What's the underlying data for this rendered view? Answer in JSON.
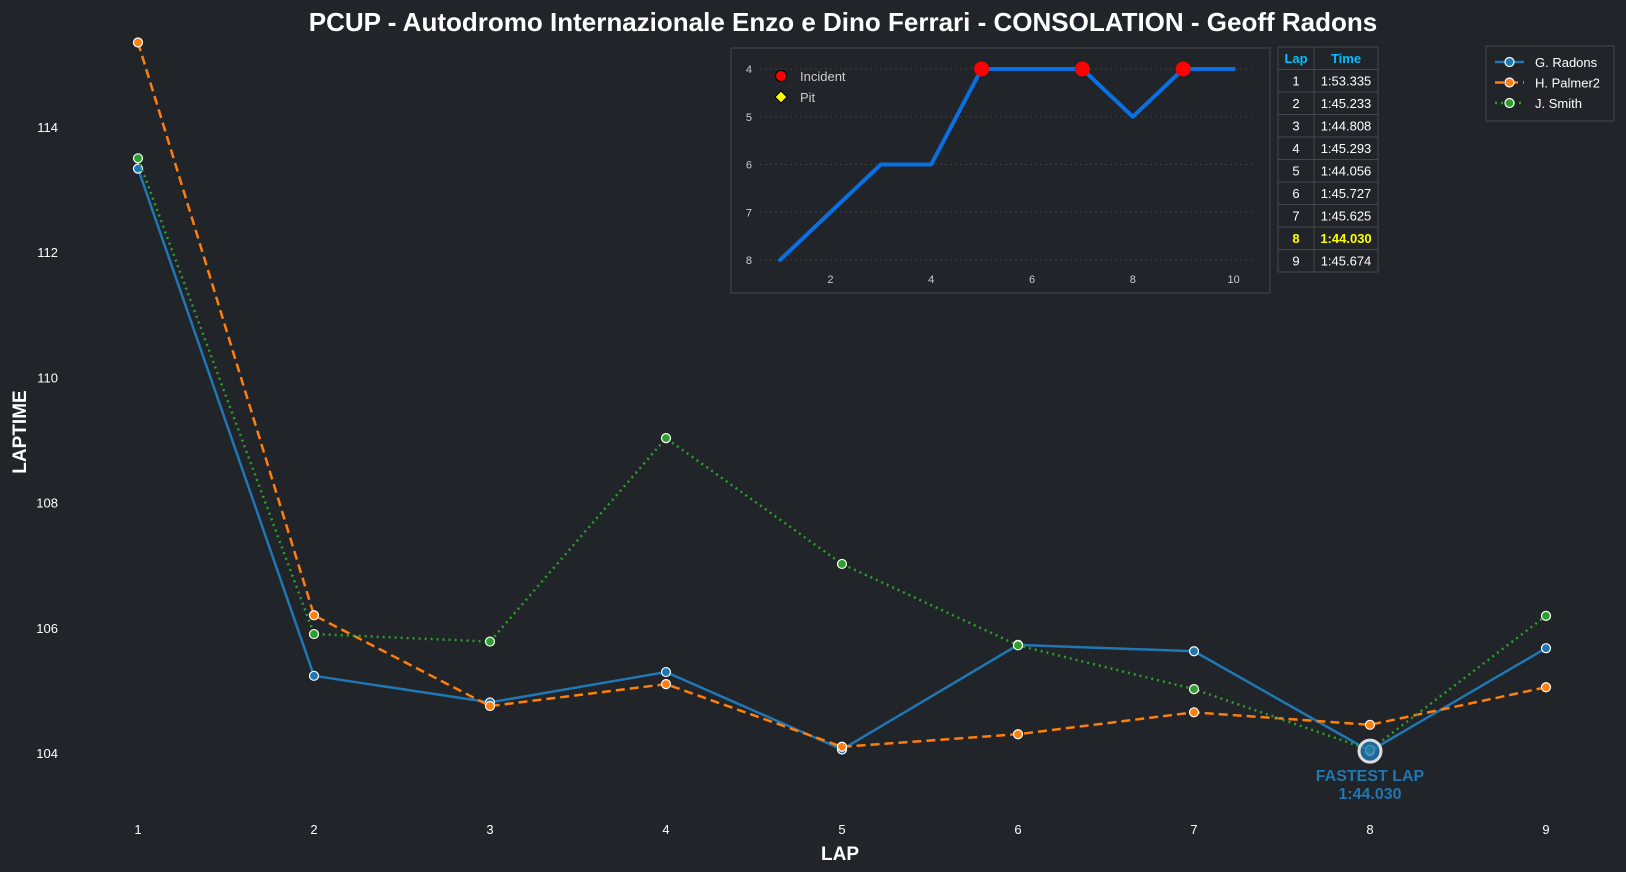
{
  "chart_data": {
    "type": "line",
    "title": "PCUP - Autodromo Internazionale Enzo e Dino Ferrari - CONSOLATION - Geoff Radons",
    "xlabel": "LAP",
    "ylabel": "LAPTIME",
    "x": [
      1,
      2,
      3,
      4,
      5,
      6,
      7,
      8,
      9
    ],
    "xticks": [
      "1",
      "2",
      "3",
      "4",
      "5",
      "6",
      "7",
      "8",
      "9"
    ],
    "yticks": [
      104,
      106,
      108,
      110,
      112,
      114
    ],
    "ylim": [
      103.0,
      115.5
    ],
    "grid": false,
    "legend_position": "top-right",
    "series": [
      {
        "name": "G. Radons",
        "color": "#1f77b4",
        "style": "solid",
        "values": [
          113.335,
          105.233,
          104.808,
          105.293,
          104.056,
          105.727,
          105.625,
          104.03,
          105.674
        ]
      },
      {
        "name": "H. Palmer2",
        "color": "#ff7f0e",
        "style": "dashed",
        "values": [
          115.35,
          106.2,
          104.75,
          105.1,
          104.1,
          104.3,
          104.65,
          104.45,
          105.05
        ]
      },
      {
        "name": "J. Smith",
        "color": "#2ca02c",
        "style": "dotted",
        "values": [
          113.5,
          105.9,
          105.78,
          109.03,
          107.02,
          105.72,
          105.02,
          104.05,
          106.19
        ]
      }
    ],
    "annotation": {
      "lap": 8,
      "value": 104.03,
      "label": "FASTEST LAP",
      "time": "1:44.030",
      "color": "#1f77b4"
    },
    "inset": {
      "type": "line",
      "x": [
        1,
        2,
        3,
        4,
        5,
        6,
        7,
        8,
        9,
        10
      ],
      "positions": [
        8,
        7,
        6,
        6,
        4,
        4,
        4,
        5,
        4,
        4
      ],
      "xticks": [
        2,
        4,
        6,
        8,
        10
      ],
      "yticks": [
        4,
        5,
        6,
        7,
        8
      ],
      "ylim_inverted": [
        8,
        4
      ],
      "color": "#0a6fe0",
      "incident_laps": [
        5,
        7,
        9
      ],
      "pit_laps": [],
      "legend": [
        {
          "label": "Incident",
          "color": "#ff0000",
          "marker": "circle"
        },
        {
          "label": "Pit",
          "color": "#ffff00",
          "marker": "diamond"
        }
      ]
    },
    "table": {
      "headers": [
        "Lap",
        "Time"
      ],
      "header_color": "#00bfff",
      "highlight_color": "#ffff00",
      "highlight_lap": 8,
      "rows": [
        [
          "1",
          "1:53.335"
        ],
        [
          "2",
          "1:45.233"
        ],
        [
          "3",
          "1:44.808"
        ],
        [
          "4",
          "1:45.293"
        ],
        [
          "5",
          "1:44.056"
        ],
        [
          "6",
          "1:45.727"
        ],
        [
          "7",
          "1:45.625"
        ],
        [
          "8",
          "1:44.030"
        ],
        [
          "9",
          "1:45.674"
        ]
      ]
    }
  }
}
